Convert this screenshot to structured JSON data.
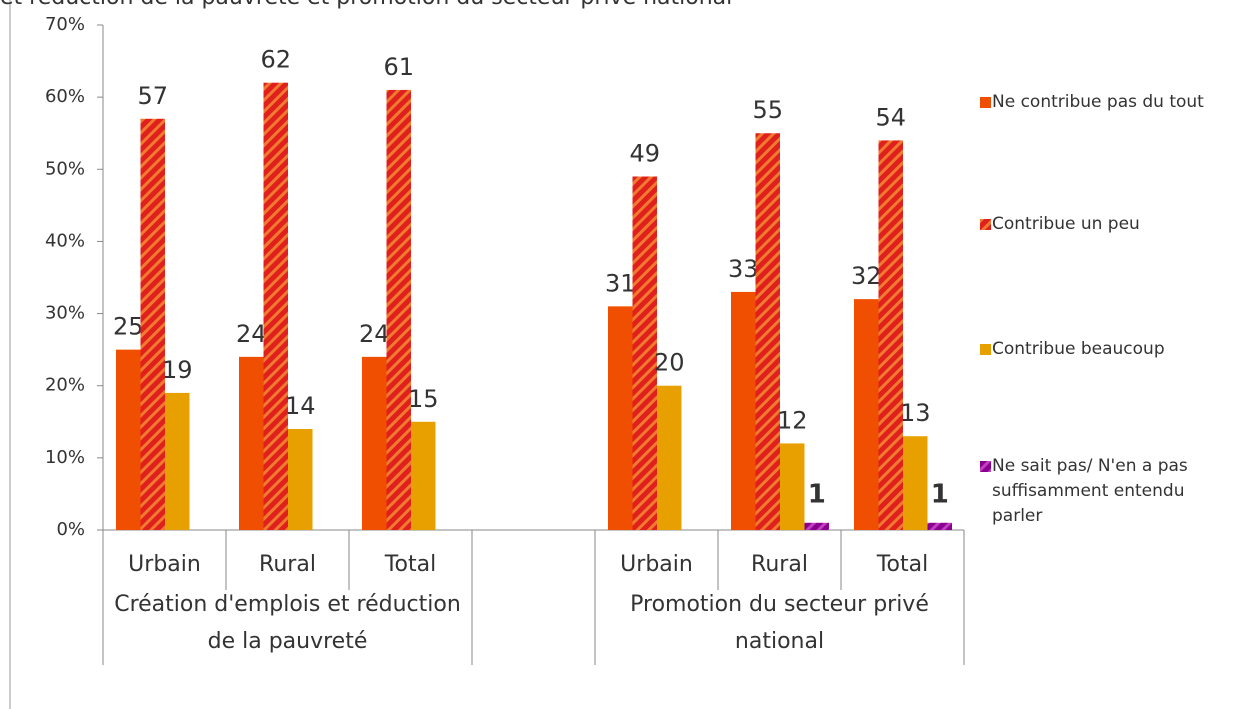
{
  "chart_data": {
    "type": "bar",
    "title": "et réduction de la pauvreté et promotion du secteur privé national",
    "categories": [
      "Urbain",
      "Rural",
      "Total",
      null,
      "Urbain",
      "Rural",
      "Total"
    ],
    "group_labels": [
      "Création  d'emplois et réduction  de la  pauvreté",
      "Promotion du secteur privé national"
    ],
    "series": [
      {
        "name": "Ne contribue pas du tout",
        "color": "#f04e00",
        "values": [
          25,
          24,
          24,
          null,
          31,
          33,
          32
        ]
      },
      {
        "name": "Contribue  un peu",
        "color": "#e0201c",
        "stripe": "#f07a30",
        "values": [
          57,
          62,
          61,
          null,
          49,
          55,
          54
        ]
      },
      {
        "name": "Contribue beaucoup",
        "color": "#e8a000",
        "values": [
          19,
          14,
          15,
          null,
          20,
          12,
          13
        ]
      },
      {
        "name": "Ne sait  pas/ N'en a pas  suffisamment entendu  parler",
        "color": "#8a0090",
        "stripe": "#c040c0",
        "values": [
          null,
          null,
          null,
          null,
          null,
          1,
          1
        ]
      }
    ],
    "ylim": [
      0,
      70
    ],
    "yticks": [
      {
        "value": 0,
        "label": "0%"
      },
      {
        "value": 10,
        "label": "10%"
      },
      {
        "value": 20,
        "label": "20%"
      },
      {
        "value": 30,
        "label": "30%"
      },
      {
        "value": 40,
        "label": "40%"
      },
      {
        "value": 50,
        "label": "50%"
      },
      {
        "value": 60,
        "label": "60%"
      },
      {
        "value": 70,
        "label": "70%"
      }
    ],
    "legend": "right"
  }
}
